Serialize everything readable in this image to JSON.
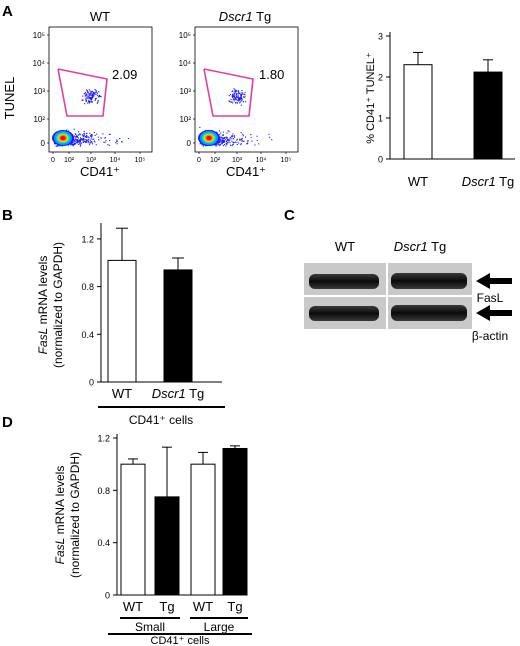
{
  "panels": {
    "A": {
      "letter": "A",
      "flow_left_title_prefix": "WT",
      "flow_right_title_italic": "Dscr1",
      "flow_right_title_suffix": " Tg",
      "flow_ylabel": "TUNEL",
      "flow_xlabel": "CD41⁺",
      "flow_y_ticks": [
        "10⁵",
        "10⁴",
        "10³",
        "10²",
        "0"
      ],
      "flow_x_ticks": [
        "0",
        "10²",
        "10³",
        "10⁴",
        "10⁵"
      ],
      "flow_gate_left_value": "2.09",
      "flow_gate_right_value": "1.80",
      "flow_colors": [
        "#1a1aff",
        "#00a0ff",
        "#00e0c0",
        "#e0e000",
        "#ff8000",
        "#ff0000"
      ],
      "gate_color": "#e040a0"
    },
    "B": {
      "letter": "B"
    },
    "C": {
      "letter": "C",
      "col_wt": "WT",
      "col_tg_italic": "Dscr1",
      "col_tg_suffix": " Tg",
      "band_fasl": "FasL",
      "band_actin": "β-actin"
    },
    "D": {
      "letter": "D"
    }
  },
  "chart_data": [
    {
      "id": "A-bar",
      "type": "bar",
      "ylabel": "% CD41⁺ TUNEL⁺",
      "categories": [
        "WT",
        "Dscr1 Tg"
      ],
      "category_parts": [
        [
          "WT",
          ""
        ],
        [
          "Dscr1",
          " Tg"
        ]
      ],
      "values": [
        2.3,
        2.12
      ],
      "errors": [
        0.3,
        0.3
      ],
      "fills": [
        "#ffffff",
        "#000000"
      ],
      "ylim": [
        0,
        3
      ],
      "yticks": [
        0,
        1,
        2,
        3
      ],
      "ytick_labels": [
        "0",
        "1",
        "2",
        "3"
      ]
    },
    {
      "id": "B-bar",
      "type": "bar",
      "ylabel_line1_italic": "FasL",
      "ylabel_line1_rest": " mRNA levels",
      "ylabel_line2": "(normalized to GAPDH)",
      "categories": [
        "WT",
        "Dscr1 Tg"
      ],
      "category_parts": [
        [
          "WT",
          ""
        ],
        [
          "Dscr1",
          " Tg"
        ]
      ],
      "values": [
        1.02,
        0.94
      ],
      "errors": [
        0.27,
        0.1
      ],
      "fills": [
        "#ffffff",
        "#000000"
      ],
      "ylim": [
        0,
        1.3
      ],
      "yticks": [
        0,
        0.4,
        0.8,
        1.2
      ],
      "ytick_labels": [
        "0",
        "0.4",
        "0.8",
        "1.2"
      ],
      "group_label": "CD41⁺ cells"
    },
    {
      "id": "D-bar",
      "type": "bar",
      "ylabel_line1_italic": "FasL",
      "ylabel_line1_rest": " mRNA levels",
      "ylabel_line2": "(normalized to GAPDH)",
      "categories": [
        "WT",
        "Tg",
        "WT",
        "Tg"
      ],
      "values": [
        1.0,
        0.75,
        1.0,
        1.12
      ],
      "errors": [
        0.04,
        0.38,
        0.09,
        0.02
      ],
      "fills": [
        "#ffffff",
        "#000000",
        "#ffffff",
        "#000000"
      ],
      "ylim": [
        0,
        1.2
      ],
      "yticks": [
        0,
        0.4,
        0.8,
        1.2
      ],
      "ytick_labels": [
        "0",
        "0.4",
        "0.8",
        "1.2"
      ],
      "subgroups": [
        "Small",
        "Large"
      ],
      "group_label": "CD41⁺ cells"
    }
  ]
}
